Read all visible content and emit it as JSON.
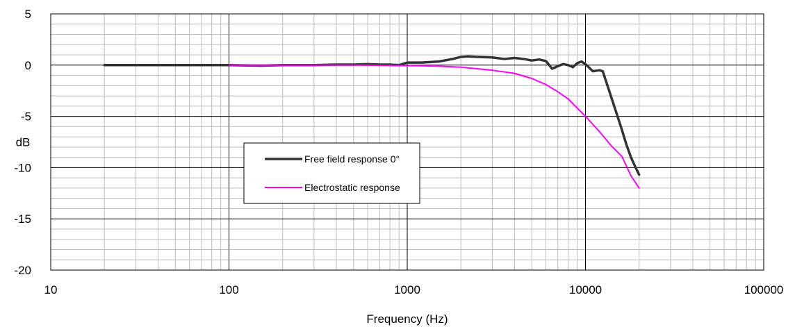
{
  "chart_data": {
    "type": "line",
    "title": "",
    "xlabel": "Frequency (Hz)",
    "ylabel": "dB",
    "x_scale": "log",
    "xlim": [
      10,
      100000
    ],
    "ylim": [
      -20,
      5
    ],
    "x_ticks": [
      10,
      100,
      1000,
      10000,
      100000
    ],
    "x_tick_labels": [
      "10",
      "100",
      "1000",
      "10000",
      "100000"
    ],
    "y_ticks": [
      5,
      0,
      -5,
      -10,
      -15,
      -20
    ],
    "y_tick_labels": [
      "5",
      "0",
      "-5",
      "-10",
      "-15",
      "-20"
    ],
    "grid": true,
    "legend_position": "center-left",
    "series": [
      {
        "name": "Free field response 0°",
        "color": "#333333",
        "points": [
          [
            20,
            0
          ],
          [
            50,
            0
          ],
          [
            100,
            0
          ],
          [
            150,
            -0.05
          ],
          [
            200,
            0
          ],
          [
            300,
            0
          ],
          [
            400,
            0.05
          ],
          [
            500,
            0.05
          ],
          [
            600,
            0.1
          ],
          [
            700,
            0.05
          ],
          [
            800,
            0.05
          ],
          [
            900,
            0
          ],
          [
            1000,
            0.25
          ],
          [
            1200,
            0.25
          ],
          [
            1500,
            0.35
          ],
          [
            1800,
            0.6
          ],
          [
            2000,
            0.8
          ],
          [
            2200,
            0.85
          ],
          [
            2500,
            0.8
          ],
          [
            3000,
            0.75
          ],
          [
            3500,
            0.6
          ],
          [
            4000,
            0.7
          ],
          [
            4500,
            0.6
          ],
          [
            5000,
            0.45
          ],
          [
            5500,
            0.55
          ],
          [
            6000,
            0.4
          ],
          [
            6500,
            -0.35
          ],
          [
            7000,
            -0.1
          ],
          [
            7500,
            0.1
          ],
          [
            8000,
            0
          ],
          [
            8500,
            -0.2
          ],
          [
            9000,
            0.2
          ],
          [
            9500,
            0.35
          ],
          [
            10000,
            0.1
          ],
          [
            11000,
            -0.6
          ],
          [
            12000,
            -0.5
          ],
          [
            12500,
            -0.6
          ],
          [
            13000,
            -1.5
          ],
          [
            14000,
            -3.2
          ],
          [
            15000,
            -4.8
          ],
          [
            16000,
            -6.3
          ],
          [
            17000,
            -7.8
          ],
          [
            18000,
            -9
          ],
          [
            19000,
            -9.9
          ],
          [
            20000,
            -10.7
          ]
        ]
      },
      {
        "name": "Electrostatic response",
        "color": "#ff00ff",
        "points": [
          [
            100,
            0
          ],
          [
            200,
            0
          ],
          [
            500,
            0
          ],
          [
            1000,
            -0.05
          ],
          [
            1500,
            -0.1
          ],
          [
            2000,
            -0.2
          ],
          [
            3000,
            -0.5
          ],
          [
            4000,
            -0.8
          ],
          [
            5000,
            -1.3
          ],
          [
            6000,
            -1.9
          ],
          [
            7000,
            -2.6
          ],
          [
            8000,
            -3.3
          ],
          [
            9000,
            -4.2
          ],
          [
            10000,
            -5
          ],
          [
            12000,
            -6.5
          ],
          [
            14000,
            -7.9
          ],
          [
            16000,
            -8.9
          ],
          [
            18000,
            -10.8
          ],
          [
            20000,
            -12
          ]
        ]
      }
    ]
  }
}
